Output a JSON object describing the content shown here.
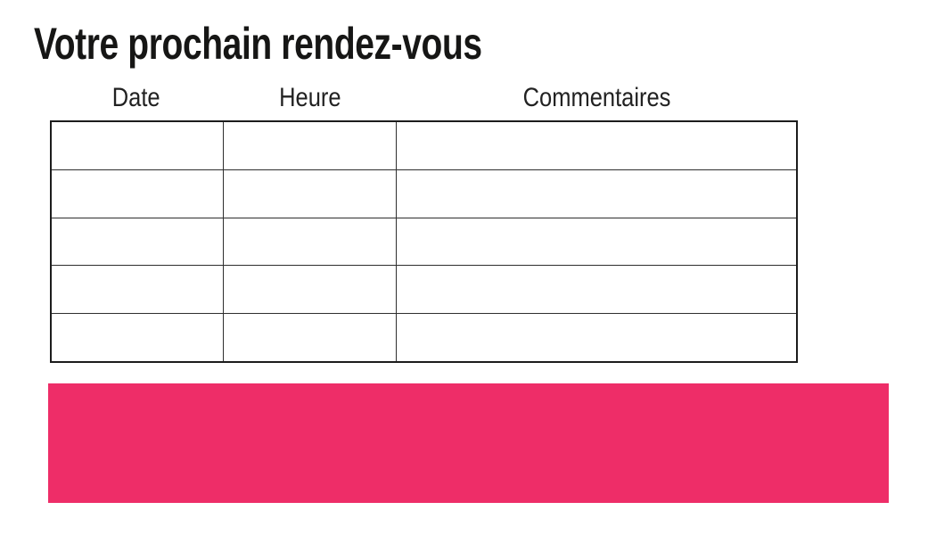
{
  "title": "Votre prochain rendez-vous",
  "table": {
    "columns": [
      "Date",
      "Heure",
      "Commentaires"
    ],
    "rows": [
      [
        "",
        "",
        ""
      ],
      [
        "",
        "",
        ""
      ],
      [
        "",
        "",
        ""
      ],
      [
        "",
        "",
        ""
      ],
      [
        "",
        "",
        ""
      ]
    ]
  },
  "colors": {
    "accent_bar": "#ee2d68",
    "title_text": "#161615"
  }
}
